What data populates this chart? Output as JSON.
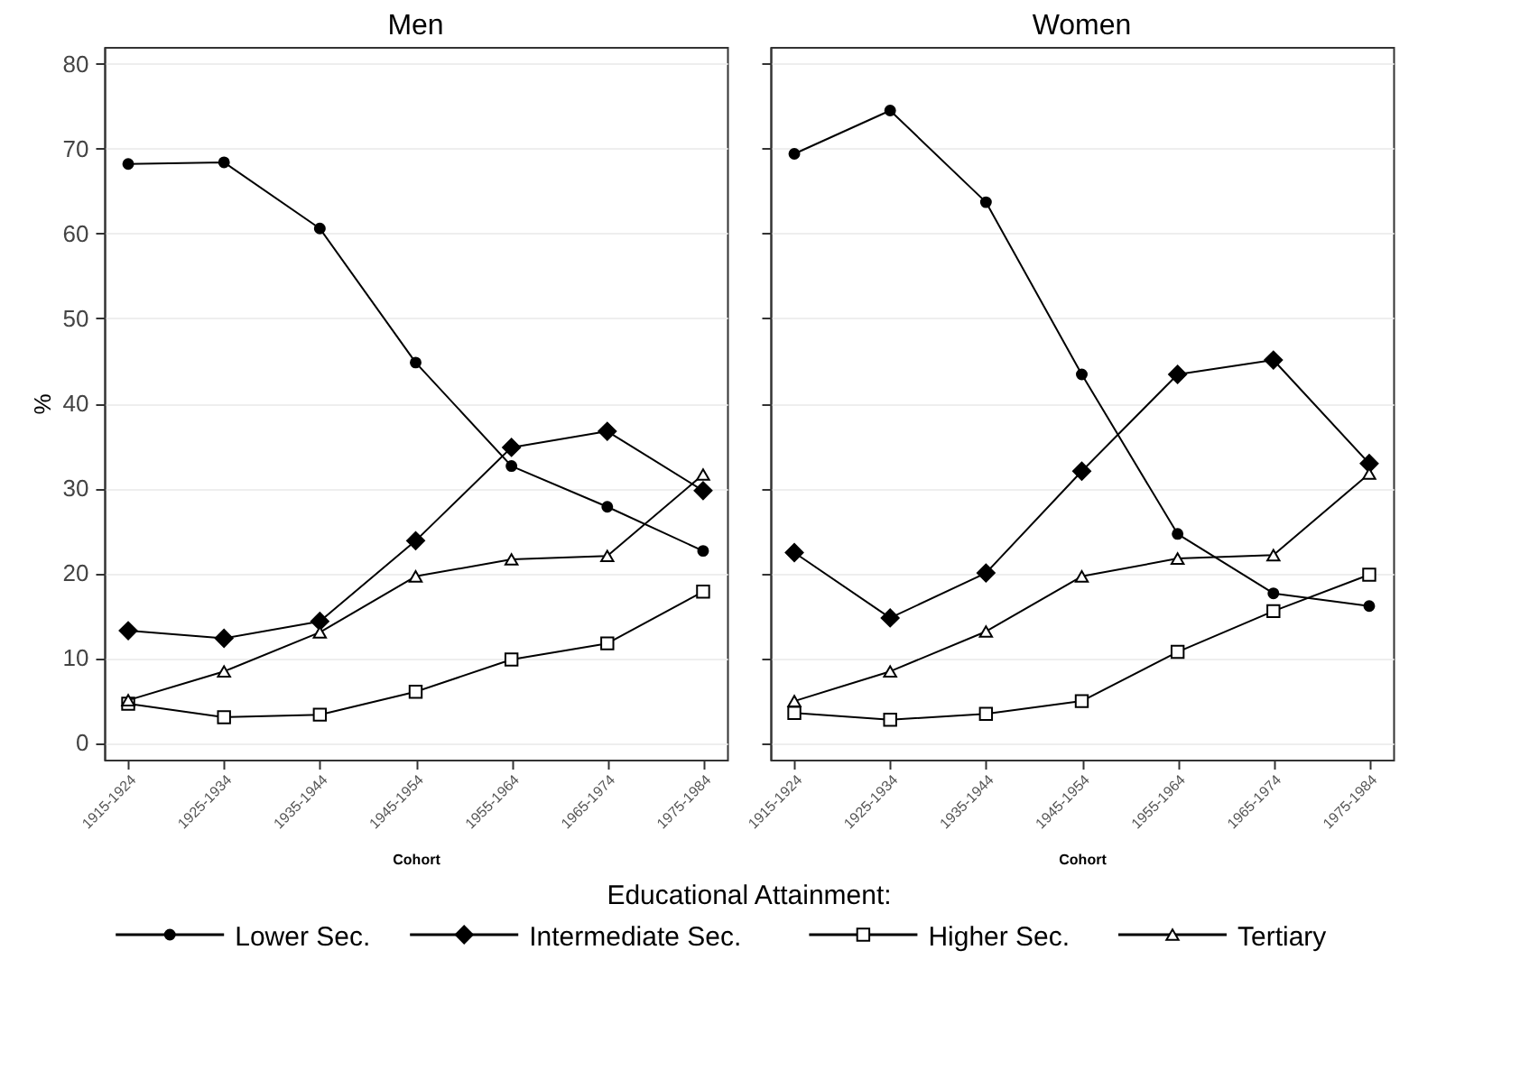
{
  "chart_data": [
    {
      "type": "line",
      "title": "Men",
      "xlabel": "Cohort",
      "ylabel": "%",
      "categories": [
        "1915-1924",
        "1925-1934",
        "1935-1944",
        "1945-1954",
        "1955-1964",
        "1965-1974",
        "1975-1984"
      ],
      "ylim": [
        -2,
        82
      ],
      "yticks": [
        0,
        10,
        20,
        30,
        40,
        50,
        60,
        70,
        80
      ],
      "grid": "y",
      "legend": "bottom",
      "legend_title": "Educational Attainment:",
      "line_style": "solid",
      "series": [
        {
          "name": "Lower Sec.",
          "color": "#000000",
          "marker": "circle",
          "values": [
            68.2,
            68.4,
            60.6,
            44.8,
            32.6,
            27.8,
            22.6
          ]
        },
        {
          "name": "Intermediate Sec.",
          "color": "#000000",
          "marker": "diamond",
          "values": [
            13.2,
            12.3,
            14.3,
            23.8,
            34.8,
            36.7,
            29.7
          ]
        },
        {
          "name": "Higher Sec.",
          "color": "#000000",
          "marker": "square",
          "values": [
            4.6,
            3.0,
            3.3,
            6.0,
            9.8,
            11.7,
            17.8
          ]
        },
        {
          "name": "Tertiary",
          "color": "#000000",
          "marker": "triangle",
          "values": [
            5.0,
            8.4,
            13.0,
            19.6,
            21.6,
            22.0,
            31.6
          ]
        }
      ]
    },
    {
      "type": "line",
      "title": "Women",
      "xlabel": "Cohort",
      "categories": [
        "1915-1924",
        "1925-1934",
        "1935-1944",
        "1945-1954",
        "1955-1964",
        "1965-1974",
        "1975-1984"
      ],
      "ylim": [
        -2,
        82
      ],
      "yticks": [
        0,
        10,
        20,
        30,
        40,
        50,
        60,
        70,
        80
      ],
      "grid": "y",
      "tick_labels": "x",
      "line_style": "solid",
      "series": [
        {
          "color": "#000000",
          "marker": "circle",
          "values": [
            69.4,
            74.5,
            63.7,
            43.4,
            24.6,
            17.6,
            16.1
          ]
        },
        {
          "color": "#000000",
          "marker": "diamond",
          "values": [
            22.4,
            14.7,
            20.0,
            32.0,
            43.4,
            45.1,
            32.9
          ]
        },
        {
          "color": "#000000",
          "marker": "square",
          "values": [
            3.5,
            2.7,
            3.4,
            4.9,
            10.7,
            15.5,
            19.8
          ]
        },
        {
          "color": "#000000",
          "marker": "triangle",
          "values": [
            4.9,
            8.4,
            13.1,
            19.6,
            21.7,
            22.1,
            31.7
          ]
        }
      ]
    }
  ]
}
